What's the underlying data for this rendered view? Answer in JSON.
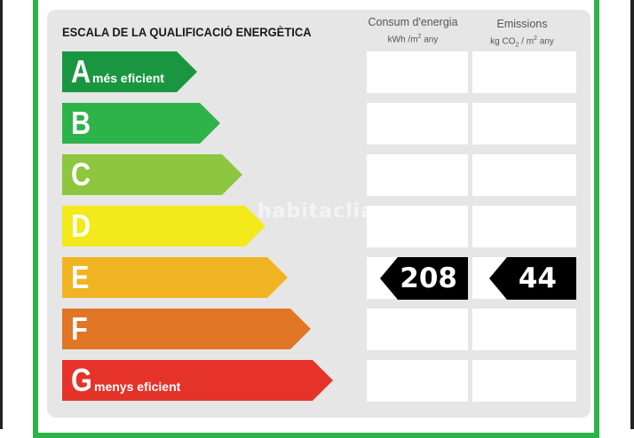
{
  "label": {
    "title": "ESCALA DE LA QUALIFICACIÓ ENERGÈTICA",
    "columns": {
      "consum": {
        "title": "Consum d'energia",
        "unit_prefix": "kWh /m",
        "unit_sup": "2",
        "unit_suffix": " any"
      },
      "emissions": {
        "title": "Emissions",
        "unit_prefix": "kg CO",
        "unit_sub": "2",
        "unit_mid": " / m",
        "unit_sup": "2",
        "unit_suffix": " any"
      }
    },
    "ratings": [
      {
        "letter": "A",
        "caption": "més eficient",
        "color": "#1a9641"
      },
      {
        "letter": "B",
        "caption": "",
        "color": "#2eb34b"
      },
      {
        "letter": "C",
        "caption": "",
        "color": "#8dc63f"
      },
      {
        "letter": "D",
        "caption": "",
        "color": "#f2ea1a"
      },
      {
        "letter": "E",
        "caption": "",
        "color": "#f0b422"
      },
      {
        "letter": "F",
        "caption": "",
        "color": "#e17627"
      },
      {
        "letter": "G",
        "caption": "menys eficient",
        "color": "#e5332a"
      }
    ],
    "current_rating": "E",
    "consum_value": "208",
    "emissions_value": "44"
  },
  "watermark": "habitaclia",
  "frame_color": "#2db34a"
}
